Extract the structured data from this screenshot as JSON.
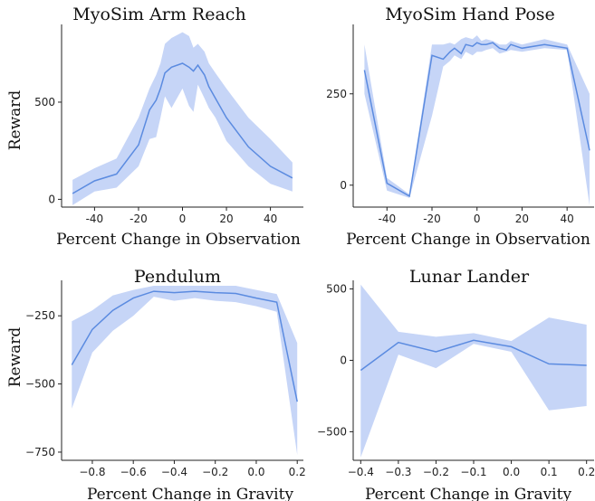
{
  "colors": {
    "line": "#5b8be0",
    "band": "#c6d5f7"
  },
  "chart_data": [
    {
      "type": "line",
      "title": "MyoSim Arm Reach",
      "xlabel": "Percent Change in Observation",
      "ylabel": "Reward",
      "xlim": [
        -55,
        55
      ],
      "ylim": [
        -40,
        900
      ],
      "xticks": [
        -40,
        -20,
        0,
        20,
        40
      ],
      "yticks": [
        0,
        500
      ],
      "x": [
        -50,
        -40,
        -30,
        -20,
        -15,
        -12,
        -10,
        -8,
        -5,
        0,
        3,
        5,
        7,
        10,
        12,
        15,
        20,
        30,
        40,
        50
      ],
      "mean": [
        30,
        95,
        130,
        280,
        460,
        510,
        570,
        650,
        680,
        700,
        680,
        660,
        690,
        640,
        580,
        520,
        420,
        270,
        170,
        110
      ],
      "lower": [
        -30,
        40,
        60,
        170,
        310,
        320,
        420,
        530,
        470,
        570,
        480,
        450,
        590,
        520,
        470,
        420,
        300,
        170,
        80,
        40
      ],
      "upper": [
        100,
        160,
        210,
        420,
        570,
        640,
        700,
        800,
        830,
        860,
        840,
        780,
        800,
        760,
        700,
        650,
        570,
        420,
        310,
        190
      ]
    },
    {
      "type": "line",
      "title": "MyoSim Hand Pose",
      "xlabel": "Percent Change in Observation",
      "ylabel": "",
      "xlim": [
        -55,
        52
      ],
      "ylim": [
        -60,
        440
      ],
      "xticks": [
        -40,
        -20,
        0,
        20,
        40
      ],
      "yticks": [
        0,
        250
      ],
      "x": [
        -50,
        -40,
        -30,
        -20,
        -15,
        -12,
        -10,
        -7,
        -5,
        -2,
        0,
        2,
        4,
        7,
        10,
        13,
        15,
        20,
        30,
        40,
        50
      ],
      "mean": [
        315,
        5,
        -30,
        355,
        345,
        365,
        375,
        360,
        385,
        380,
        390,
        385,
        385,
        390,
        375,
        370,
        385,
        375,
        385,
        375,
        95
      ],
      "lower": [
        250,
        -15,
        -35,
        190,
        325,
        340,
        355,
        345,
        365,
        355,
        365,
        365,
        370,
        375,
        360,
        365,
        370,
        365,
        375,
        370,
        -55
      ],
      "upper": [
        385,
        20,
        -25,
        385,
        385,
        390,
        385,
        400,
        405,
        400,
        410,
        395,
        400,
        395,
        385,
        385,
        395,
        385,
        400,
        385,
        250
      ]
    },
    {
      "type": "line",
      "title": "Pendulum",
      "xlabel": "Percent Change in Gravity",
      "ylabel": "Reward",
      "xlim": [
        -0.95,
        0.23
      ],
      "ylim": [
        -780,
        -120
      ],
      "xticks": [
        -0.8,
        -0.6,
        -0.4,
        -0.2,
        0.0,
        0.2
      ],
      "xtick_labels": [
        "−0.8",
        "−0.6",
        "−0.4",
        "−0.2",
        "0.0",
        "0.2"
      ],
      "yticks": [
        -250,
        -500,
        -750
      ],
      "ytick_labels": [
        "−250",
        "−500",
        "−750"
      ],
      "x": [
        -0.9,
        -0.8,
        -0.7,
        -0.6,
        -0.5,
        -0.4,
        -0.3,
        -0.2,
        -0.1,
        0.0,
        0.1,
        0.2
      ],
      "mean": [
        -430,
        -300,
        -230,
        -185,
        -160,
        -165,
        -160,
        -165,
        -168,
        -185,
        -200,
        -565
      ],
      "lower": [
        -590,
        -385,
        -305,
        -250,
        -180,
        -195,
        -185,
        -195,
        -200,
        -215,
        -235,
        -760
      ],
      "upper": [
        -270,
        -230,
        -175,
        -155,
        -140,
        -140,
        -140,
        -140,
        -140,
        -155,
        -170,
        -350
      ]
    },
    {
      "type": "line",
      "title": "Lunar Lander",
      "xlabel": "Percent Change in Gravity",
      "ylabel": "",
      "xlim": [
        -0.42,
        0.22
      ],
      "ylim": [
        -700,
        560
      ],
      "xticks": [
        -0.4,
        -0.3,
        -0.2,
        -0.1,
        0.0,
        0.1,
        0.2
      ],
      "xtick_labels": [
        "−0.4",
        "−0.3",
        "−0.2",
        "−0.1",
        "0.0",
        "0.1",
        "0.2"
      ],
      "yticks": [
        500,
        0,
        -500
      ],
      "ytick_labels": [
        "500",
        "0",
        "−500"
      ],
      "x": [
        -0.4,
        -0.3,
        -0.2,
        -0.1,
        0.0,
        0.1,
        0.2
      ],
      "mean": [
        -70,
        125,
        60,
        140,
        95,
        -25,
        -35
      ],
      "lower": [
        -680,
        40,
        -55,
        115,
        60,
        -350,
        -320
      ],
      "upper": [
        530,
        200,
        165,
        190,
        135,
        300,
        250
      ]
    }
  ]
}
